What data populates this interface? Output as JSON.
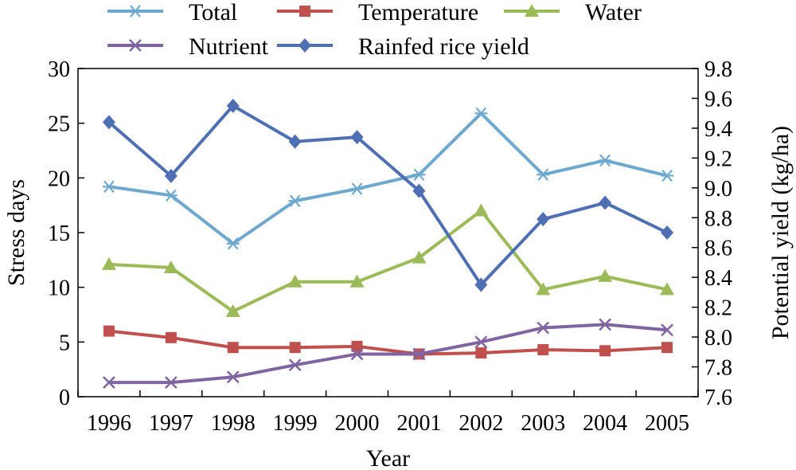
{
  "chart_data": {
    "type": "line",
    "xlabel": "Year",
    "ylabel_left": "Stress days",
    "ylabel_right": "Potential yield (kg/ha)",
    "categories": [
      "1996",
      "1997",
      "1998",
      "1999",
      "2000",
      "2001",
      "2002",
      "2003",
      "2004",
      "2005"
    ],
    "left_ylim": [
      0,
      30
    ],
    "left_ticks": [
      "0",
      "5",
      "10",
      "15",
      "20",
      "25",
      "30"
    ],
    "right_ylim": [
      7.6,
      9.8
    ],
    "right_ticks": [
      "7.6",
      "7.8",
      "8.0",
      "8.2",
      "8.4",
      "8.6",
      "8.8",
      "9.0",
      "9.2",
      "9.4",
      "9.6",
      "9.8"
    ],
    "legend_position": "top",
    "series": [
      {
        "name": "Total",
        "axis": "left",
        "color": "#6fa8cf",
        "marker": "asterisk",
        "values": [
          19.2,
          18.4,
          14.0,
          17.9,
          19.0,
          20.3,
          25.9,
          20.3,
          21.6,
          20.2
        ]
      },
      {
        "name": "Temperature",
        "axis": "left",
        "color": "#c0504d",
        "marker": "square",
        "values": [
          6.0,
          5.4,
          4.5,
          4.5,
          4.6,
          3.9,
          4.0,
          4.3,
          4.2,
          4.5
        ]
      },
      {
        "name": "Water",
        "axis": "left",
        "color": "#9bbb59",
        "marker": "triangle",
        "values": [
          12.1,
          11.8,
          7.8,
          10.5,
          10.5,
          12.7,
          17.0,
          9.8,
          11.0,
          9.8
        ]
      },
      {
        "name": "Nutrient",
        "axis": "left",
        "color": "#8064a2",
        "marker": "x",
        "values": [
          1.3,
          1.3,
          1.8,
          2.9,
          3.9,
          3.9,
          5.0,
          6.3,
          6.6,
          6.1
        ]
      },
      {
        "name": "Rainfed rice yield",
        "axis": "right",
        "color": "#4f6fb5",
        "marker": "diamond",
        "values": [
          9.44,
          9.08,
          9.55,
          9.31,
          9.34,
          8.98,
          8.35,
          8.79,
          8.9,
          8.7
        ]
      }
    ]
  }
}
